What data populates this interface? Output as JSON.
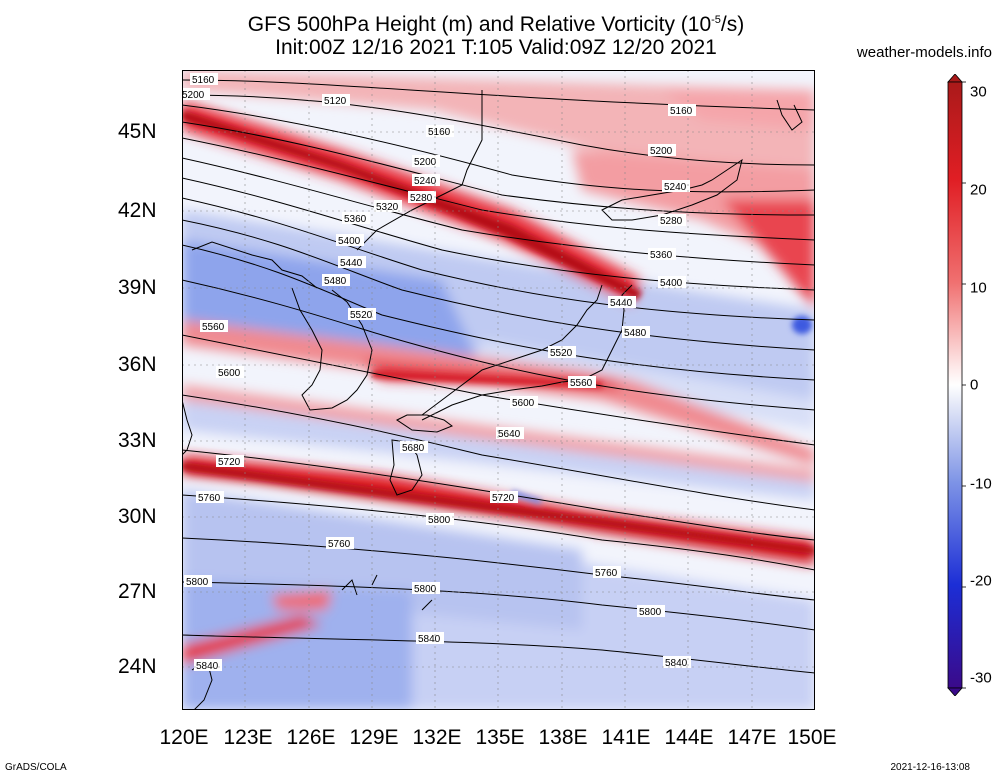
{
  "title_line1": "GFS 500hPa Height (m) and Relative Vorticity (10",
  "title_sup": "-5",
  "title_tail": "/s)",
  "title_line2": "Init:00Z 12/16 2021 T:105 Valid:09Z 12/20 2021",
  "site": "weather-models.info",
  "footer_left": "GrADS/COLA",
  "footer_right": "2021-12-16-13:08",
  "lat_labels": [
    "45N",
    "42N",
    "39N",
    "36N",
    "33N",
    "30N",
    "27N",
    "24N"
  ],
  "lon_labels": [
    "120E",
    "123E",
    "126E",
    "129E",
    "132E",
    "135E",
    "138E",
    "141E",
    "144E",
    "147E",
    "150E"
  ],
  "colorbar_labels": [
    "30",
    "20",
    "10",
    "0",
    "-10",
    "-20",
    "-30"
  ],
  "colors": {
    "strong_pos": "#c8141e",
    "mid_pos": "#f0505a",
    "weak_pos": "#f5c8c8",
    "neutral": "#ffffff",
    "weak_neg": "#c8d2f5",
    "mid_neg": "#5a78e6",
    "strong_neg": "#1e1eb4",
    "contour": "#000000"
  },
  "contour_labels": [
    "5120",
    "5160",
    "5200",
    "5240",
    "5280",
    "5320",
    "5360",
    "5400",
    "5440",
    "5480",
    "5520",
    "5560",
    "5600",
    "5640",
    "5680",
    "5720",
    "5760",
    "5800",
    "5840"
  ],
  "chart_data": {
    "type": "heatmap",
    "title": "GFS 500hPa Height (m) and Relative Vorticity (10^-5/s)",
    "xlim": [
      120,
      150
    ],
    "ylim": [
      22.5,
      47.5
    ],
    "x_ticks": [
      120,
      123,
      126,
      129,
      132,
      135,
      138,
      141,
      144,
      147,
      150
    ],
    "y_ticks": [
      24,
      27,
      30,
      33,
      36,
      39,
      42,
      45
    ],
    "colorbar_range": [
      -30,
      30
    ],
    "height_contours_m": [
      5120,
      5160,
      5200,
      5240,
      5280,
      5320,
      5360,
      5400,
      5440,
      5480,
      5520,
      5560,
      5600,
      5640,
      5680,
      5720,
      5760,
      5800,
      5840
    ]
  }
}
